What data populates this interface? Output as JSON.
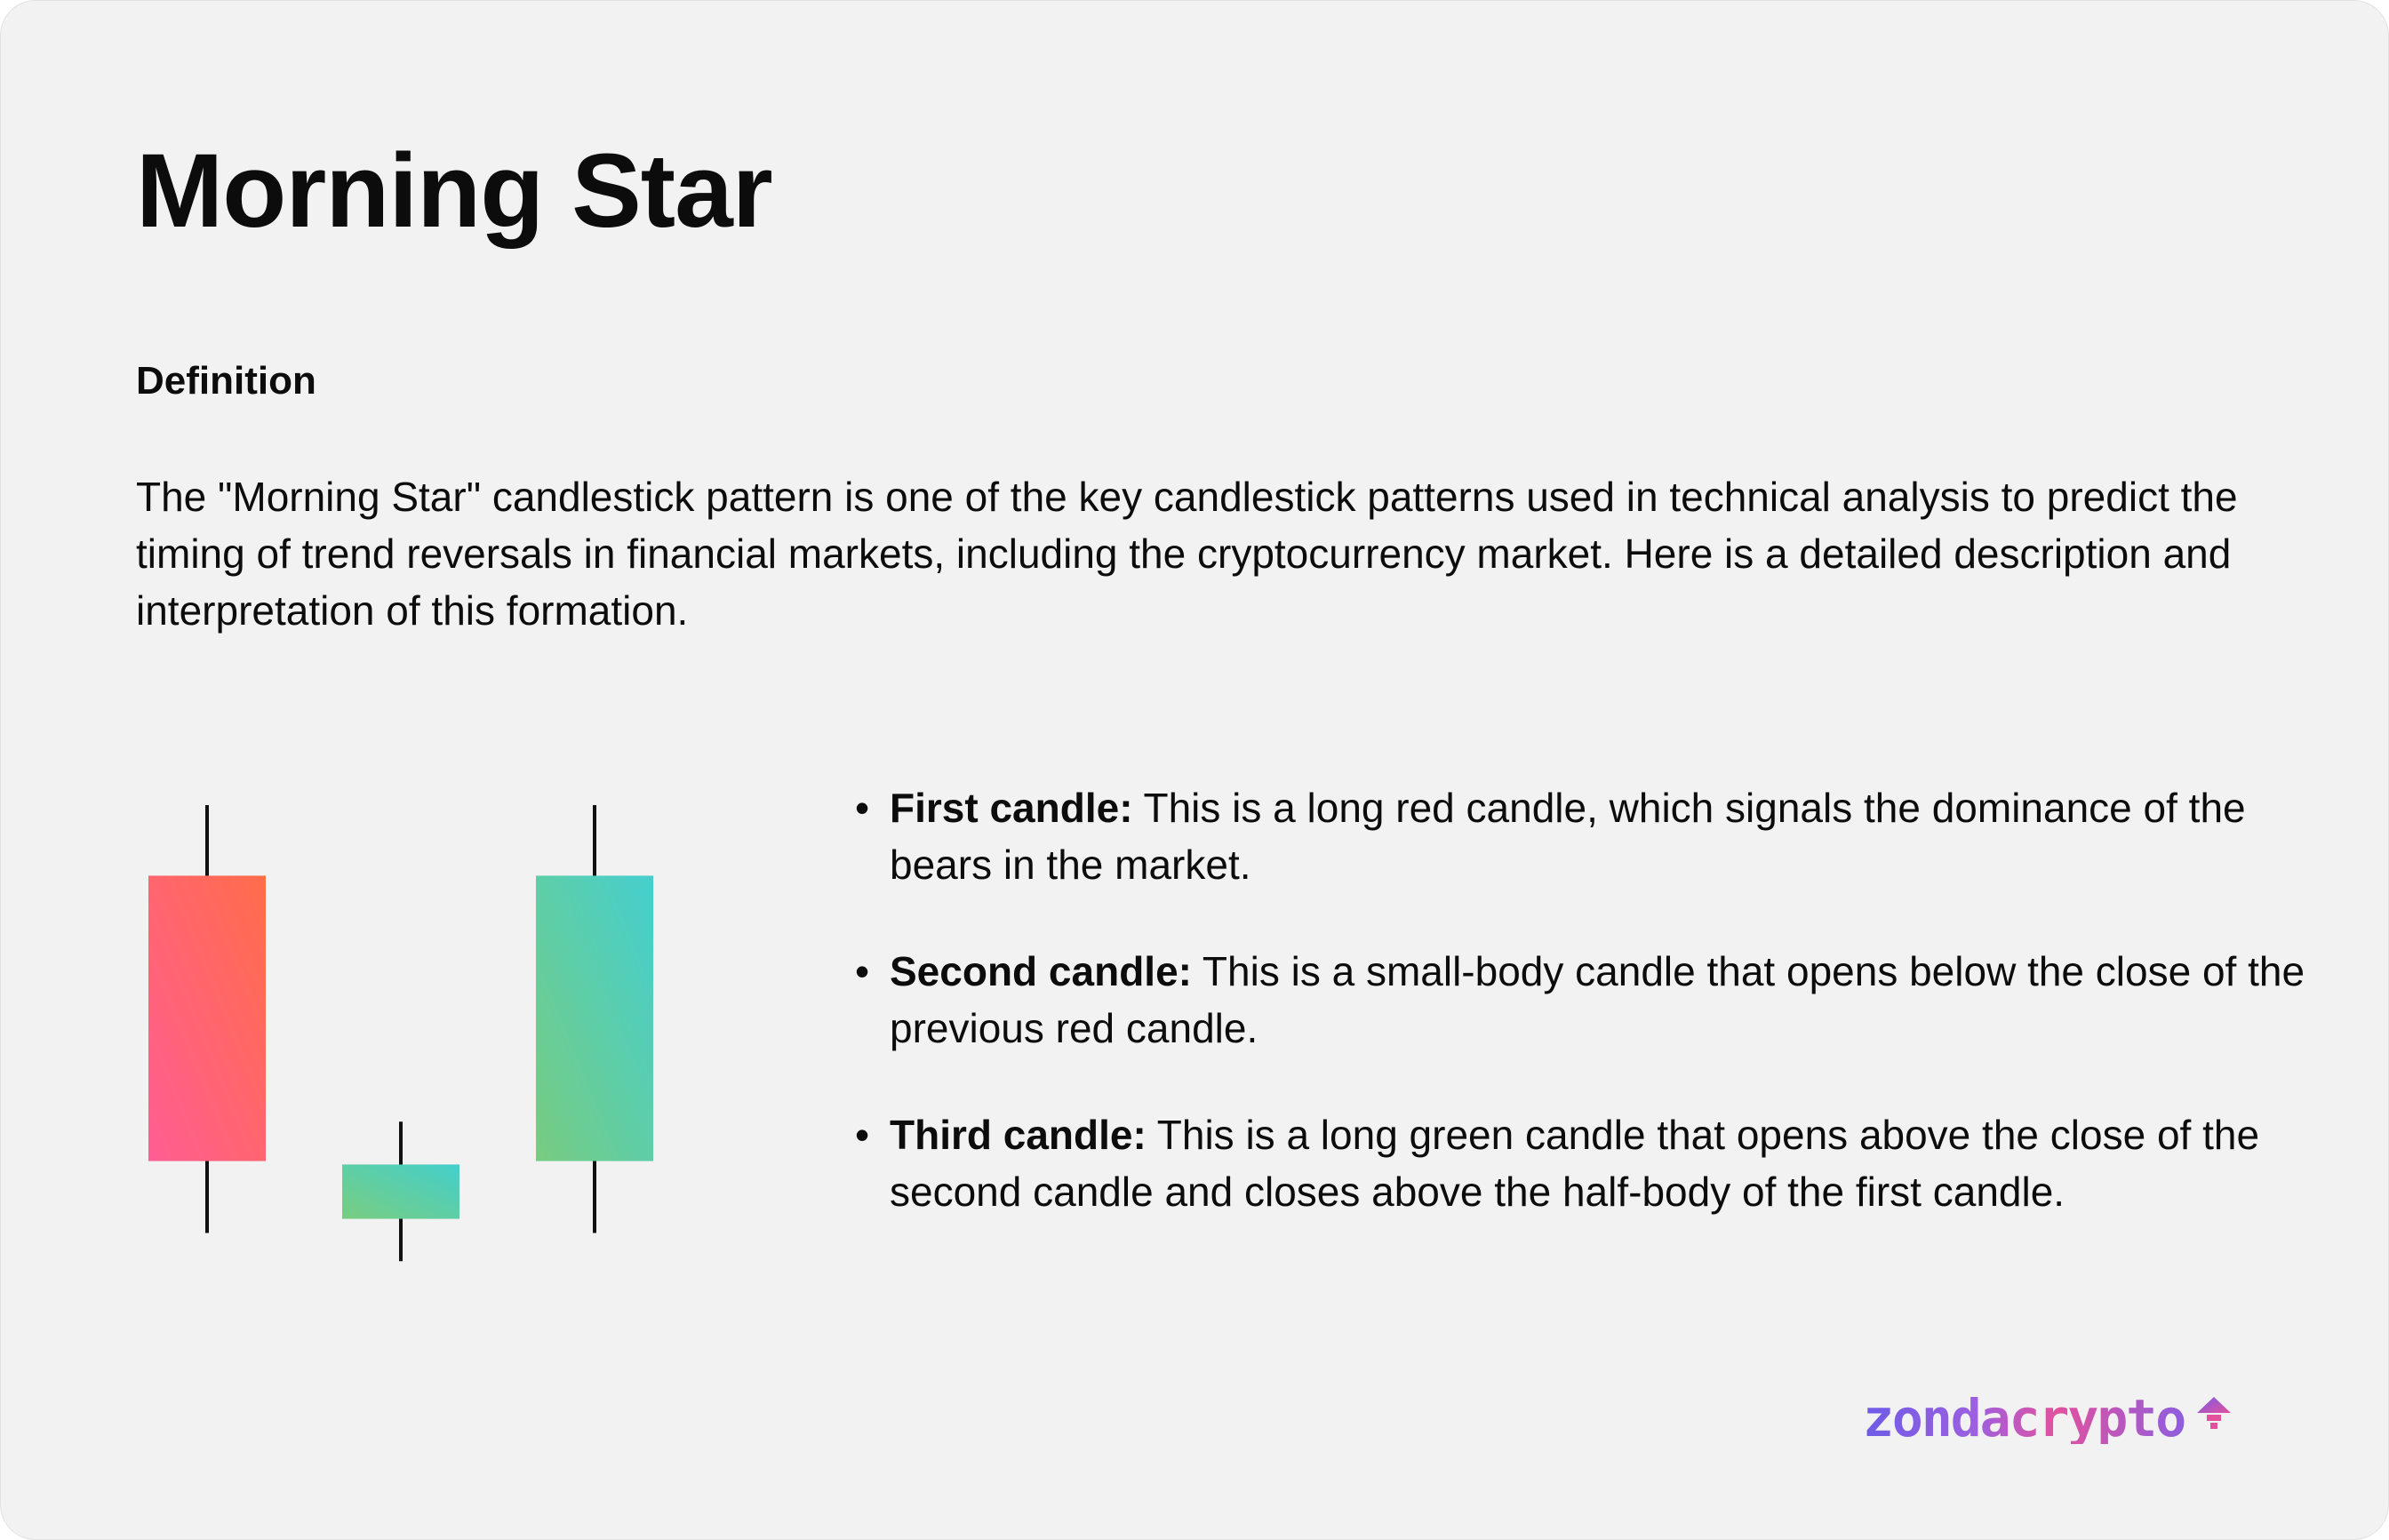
{
  "title": "Morning Star",
  "definition_heading": "Definition",
  "intro": "The \"Morning Star\" candlestick pattern is one of the key candlestick patterns used in technical analysis to predict the timing of trend reversals in financial markets, including the cryptocurrency market. Here is a detailed description and interpretation of this formation.",
  "bullets": [
    {
      "title": "First candle:",
      "text": " This is a long red candle, which signals the dominance of the bears in the market."
    },
    {
      "title": "Second candle:",
      "text": " This is a small-body candle that opens below the close of the previous red candle."
    },
    {
      "title": "Third candle:",
      "text": " This is a long green candle that opens above the close of the second candle and closes above the half-body of the first candle."
    }
  ],
  "bullet_symbol": "•",
  "candles": [
    {
      "type": "bearish",
      "high": 100,
      "open": 83.5,
      "close": 16.8,
      "low": 0,
      "gradient": [
        "#ff6d4a",
        "#ff5e93"
      ]
    },
    {
      "type": "small",
      "high": 26,
      "open": 16,
      "close": 3.3,
      "low": -6.6,
      "gradient": [
        "#44cfcb",
        "#79cd80"
      ]
    },
    {
      "type": "bullish",
      "high": 100,
      "open": 16.8,
      "close": 83.5,
      "low": 0,
      "gradient": [
        "#45cfcf",
        "#77cc80"
      ]
    }
  ],
  "logo": {
    "text": "zondacrypto",
    "icon": "lamp-icon",
    "colors": [
      "#6d5ce6",
      "#e3519e"
    ]
  }
}
